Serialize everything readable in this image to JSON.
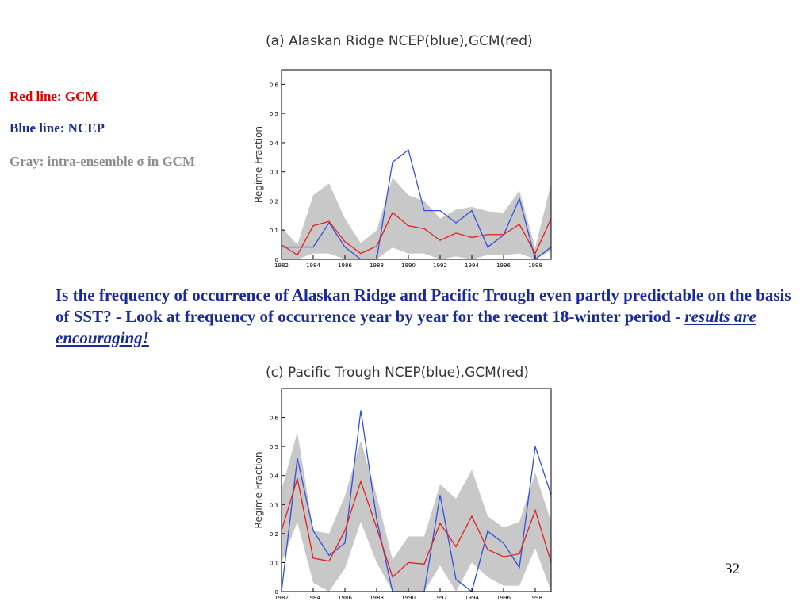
{
  "notes": [
    {
      "text": "Red line: GCM",
      "color": "#e00000"
    },
    {
      "text": "Blue line: NCEP",
      "color": "#1a2a9a"
    },
    {
      "text": "Gray: intra-ensemble σ in GCM",
      "color": "#8c8c8c"
    }
  ],
  "paragraph": {
    "text": "Is the frequency of occurrence of Alaskan Ridge and Pacific Trough even partly predictable on the basis of SST?  - Look at frequency of occurrence year by year for the recent 18-winter period - ",
    "emphasis": "results are encouraging!"
  },
  "page_number": "32",
  "chart_data": [
    {
      "type": "line",
      "title": "(a)  Alaskan Ridge  NCEP(blue),GCM(red)",
      "y_label": "Regime Fraction",
      "x": [
        1982,
        1983,
        1984,
        1985,
        1986,
        1987,
        1988,
        1989,
        1990,
        1991,
        1992,
        1993,
        1994,
        1995,
        1996,
        1997,
        1998,
        1999
      ],
      "xlim": [
        1982,
        1999
      ],
      "xticks": [
        1982,
        1984,
        1986,
        1988,
        1990,
        1992,
        1994,
        1996,
        1998
      ],
      "ylim": [
        0,
        0.65
      ],
      "yticks": [
        0,
        0.1,
        0.2,
        0.3,
        0.4,
        0.5,
        0.6
      ],
      "band": {
        "color": "#c8c8c8",
        "upper": [
          0.11,
          0.05,
          0.22,
          0.26,
          0.14,
          0.055,
          0.1,
          0.28,
          0.22,
          0.2,
          0.14,
          0.17,
          0.18,
          0.165,
          0.16,
          0.235,
          0.04,
          0.26
        ],
        "lower": [
          0,
          0,
          0.02,
          0.02,
          0,
          0,
          0,
          0.04,
          0.02,
          0.02,
          0,
          0.01,
          0,
          0.015,
          0.015,
          0.02,
          0,
          0.03
        ]
      },
      "series": [
        {
          "name": "NCEP",
          "color": "#3050e0",
          "values": [
            0.042,
            0.042,
            0.042,
            0.125,
            0.042,
            0,
            0,
            0.333,
            0.375,
            0.167,
            0.167,
            0.125,
            0.167,
            0.042,
            0.083,
            0.208,
            0,
            0.042
          ]
        },
        {
          "name": "GCM",
          "color": "#e02020",
          "values": [
            0.05,
            0.015,
            0.115,
            0.13,
            0.06,
            0.02,
            0.045,
            0.16,
            0.115,
            0.105,
            0.065,
            0.09,
            0.075,
            0.085,
            0.085,
            0.12,
            0.02,
            0.14
          ]
        }
      ]
    },
    {
      "type": "line",
      "title": "(c)  Pacific Trough NCEP(blue),GCM(red)",
      "y_label": "Regime Fraction",
      "x": [
        1982,
        1983,
        1984,
        1985,
        1986,
        1987,
        1988,
        1989,
        1990,
        1991,
        1992,
        1993,
        1994,
        1995,
        1996,
        1997,
        1998,
        1999
      ],
      "xlim": [
        1982,
        1999
      ],
      "xticks": [
        1982,
        1984,
        1986,
        1988,
        1990,
        1992,
        1994,
        1996,
        1998
      ],
      "ylim": [
        0,
        0.7
      ],
      "yticks": [
        0,
        0.1,
        0.2,
        0.3,
        0.4,
        0.5,
        0.6
      ],
      "band": {
        "color": "#c8c8c8",
        "upper": [
          0.35,
          0.55,
          0.21,
          0.2,
          0.33,
          0.52,
          0.33,
          0.11,
          0.19,
          0.19,
          0.37,
          0.32,
          0.42,
          0.26,
          0.22,
          0.24,
          0.41,
          0.24
        ],
        "lower": [
          0.1,
          0.24,
          0.03,
          0,
          0.08,
          0.24,
          0.1,
          0,
          0,
          0,
          0.09,
          0,
          0.1,
          0.05,
          0.02,
          0.02,
          0.15,
          0
        ]
      },
      "series": [
        {
          "name": "NCEP",
          "color": "#3050e0",
          "values": [
            0,
            0.46,
            0.21,
            0.125,
            0.167,
            0.625,
            0.25,
            0,
            0,
            0,
            0.333,
            0.042,
            0,
            0.208,
            0.167,
            0.083,
            0.5,
            0.333
          ]
        },
        {
          "name": "GCM",
          "color": "#e02020",
          "values": [
            0.21,
            0.39,
            0.115,
            0.105,
            0.21,
            0.38,
            0.22,
            0.05,
            0.1,
            0.095,
            0.235,
            0.155,
            0.26,
            0.145,
            0.12,
            0.13,
            0.28,
            0.1
          ]
        }
      ]
    }
  ]
}
